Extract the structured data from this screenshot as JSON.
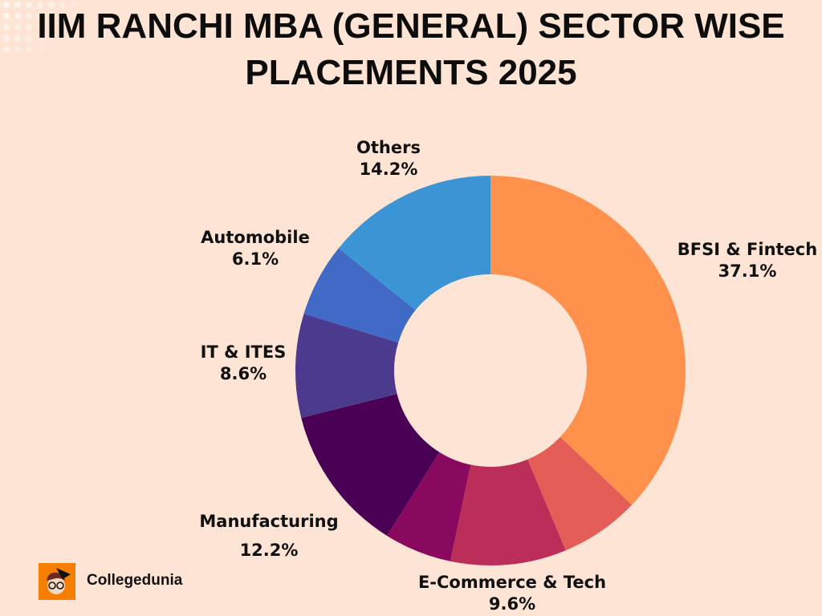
{
  "chart_data": {
    "type": "pie",
    "variant": "donut",
    "title": "IIM RANCHI MBA (GENERAL) SECTOR WISE PLACEMENTS 2025",
    "start_angle": "top",
    "direction": "clockwise",
    "legend": "none",
    "slices": [
      {
        "label": "BFSI & Fintech",
        "value_text": "37.1%",
        "value": 37.1,
        "color": "#FF914D"
      },
      {
        "label": "",
        "value_text": "",
        "value": 6.6,
        "color": "#E45D57"
      },
      {
        "label": "E-Commerce & Tech",
        "value_text": "9.6%",
        "value": 9.6,
        "color": "#BC2E5A"
      },
      {
        "label": "",
        "value_text": "",
        "value": 5.6,
        "color": "#88095E"
      },
      {
        "label": "Manufacturing",
        "value_text": "12.2%",
        "value": 12.2,
        "color": "#4A0055"
      },
      {
        "label": "IT & ITES",
        "value_text": "8.6%",
        "value": 8.6,
        "color": "#4B3A8D"
      },
      {
        "label": "Automobile",
        "value_text": "6.1%",
        "value": 6.1,
        "color": "#4169C6"
      },
      {
        "label": "Others",
        "value_text": "14.2%",
        "value": 14.2,
        "color": "#3B94D4"
      }
    ]
  },
  "brand": {
    "name": "Collegedunia",
    "logo_color": "#F77F00"
  }
}
